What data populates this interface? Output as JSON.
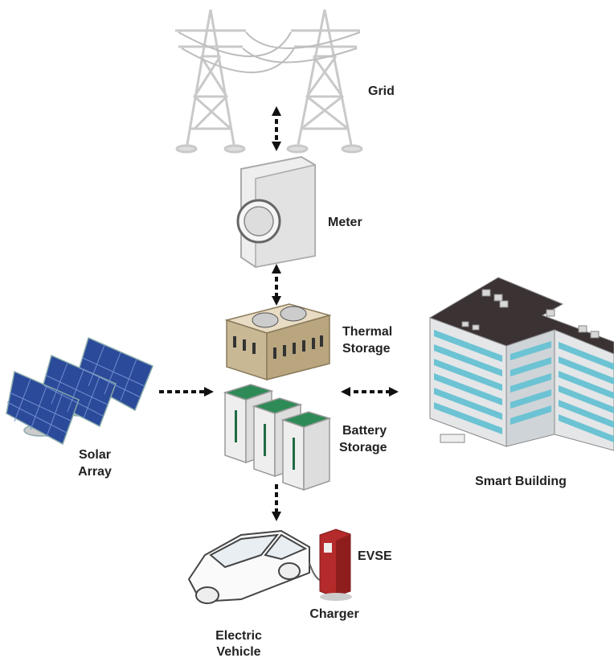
{
  "nodes": [
    {
      "id": "grid",
      "lines": [
        "Grid"
      ]
    },
    {
      "id": "meter",
      "lines": [
        "Meter"
      ]
    },
    {
      "id": "thermal",
      "lines": [
        "Thermal",
        "Storage"
      ]
    },
    {
      "id": "battery",
      "lines": [
        "Battery",
        "Storage"
      ]
    },
    {
      "id": "solar",
      "lines": [
        "Solar",
        "Array"
      ]
    },
    {
      "id": "building",
      "lines": [
        "Smart Building"
      ]
    },
    {
      "id": "ev",
      "lines": [
        "Electric",
        "Vehicle"
      ]
    },
    {
      "id": "evse",
      "lines": [
        "EVSE"
      ]
    },
    {
      "id": "charger",
      "lines": [
        "Charger"
      ]
    }
  ]
}
